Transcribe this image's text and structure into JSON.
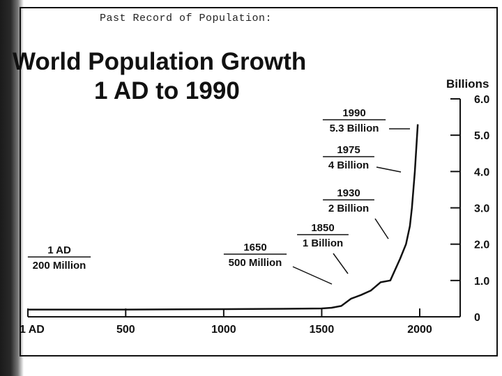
{
  "header_note": "Past Record of Population:",
  "chart_data": {
    "type": "line",
    "title_line1": "World Population Growth",
    "title_line2": "1 AD to 1990",
    "ylabel": "Billions",
    "xlim": [
      1,
      2000
    ],
    "ylim": [
      0,
      6.0
    ],
    "x_ticks": [
      {
        "value": 1,
        "label": "1 AD"
      },
      {
        "value": 500,
        "label": "500"
      },
      {
        "value": 1000,
        "label": "1000"
      },
      {
        "value": 1500,
        "label": "1500"
      },
      {
        "value": 2000,
        "label": "2000"
      }
    ],
    "y_ticks": [
      {
        "value": 0,
        "label": "0"
      },
      {
        "value": 1.0,
        "label": "1.0"
      },
      {
        "value": 2.0,
        "label": "2.0"
      },
      {
        "value": 3.0,
        "label": "3.0"
      },
      {
        "value": 4.0,
        "label": "4.0"
      },
      {
        "value": 5.0,
        "label": "5.0"
      },
      {
        "value": 6.0,
        "label": "6.0"
      }
    ],
    "series": [
      {
        "x": [
          1,
          500,
          1000,
          1300,
          1500,
          1550,
          1600,
          1650,
          1700,
          1750,
          1800,
          1850,
          1900,
          1930,
          1950,
          1960,
          1975,
          1990
        ],
        "y": [
          0.2,
          0.2,
          0.21,
          0.22,
          0.23,
          0.25,
          0.3,
          0.5,
          0.6,
          0.72,
          0.95,
          1.0,
          1.6,
          2.0,
          2.5,
          3.0,
          4.0,
          5.3
        ]
      }
    ],
    "annotations": [
      {
        "year": "1 AD",
        "value": "200 Million"
      },
      {
        "year": "1650",
        "value": "500 Million"
      },
      {
        "year": "1850",
        "value": "1 Billion"
      },
      {
        "year": "1930",
        "value": "2 Billion"
      },
      {
        "year": "1975",
        "value": "4 Billion"
      },
      {
        "year": "1990",
        "value": "5.3 Billion"
      }
    ]
  }
}
